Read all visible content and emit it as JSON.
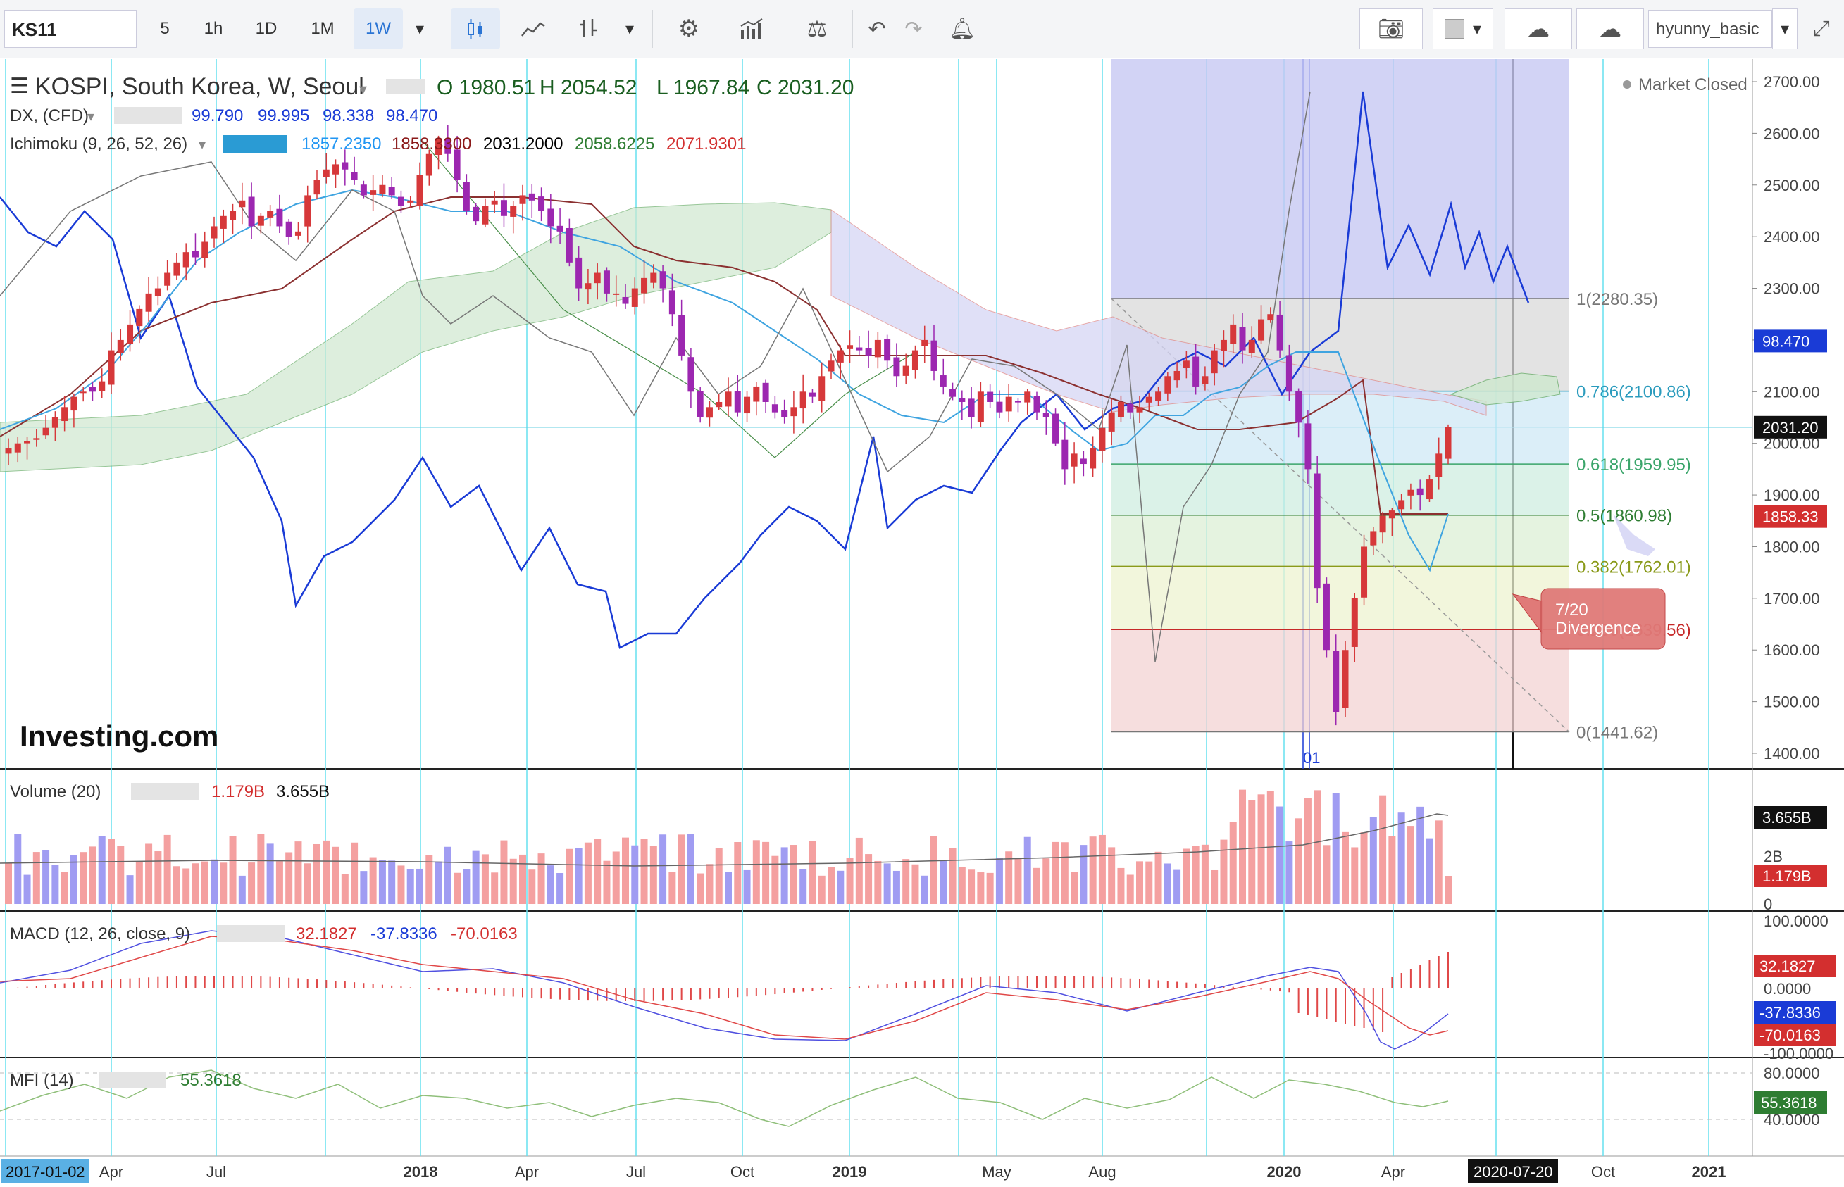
{
  "toolbar": {
    "symbol": "KS11",
    "intervals": [
      "5",
      "1h",
      "1D",
      "1M",
      "1W"
    ],
    "active_interval": "1W",
    "user": "hyunny_basic"
  },
  "main_legend": {
    "title": "KOSPI, South Korea, W, Seoul",
    "open": "O 1980.51",
    "high": "H 2054.52",
    "low": "L 1967.84",
    "close": "C 2031.20"
  },
  "dx_legend": {
    "name": "DX, (CFD)",
    "values": [
      "99.790",
      "99.995",
      "98.338",
      "98.470"
    ]
  },
  "ichimoku_legend": {
    "name": "Ichimoku (9, 26, 52, 26)",
    "values": [
      "1857.2350",
      "1858.3300",
      "2031.2000",
      "2058.6225",
      "2071.9301"
    ],
    "colors": [
      "#2196f3",
      "#8b1a1a",
      "#000000",
      "#2e7d32",
      "#d32f2f"
    ]
  },
  "market_status": "Market Closed",
  "watermark": "Investing.com",
  "fib_levels": [
    {
      "label": "1(2280.35)",
      "value": 2280.35,
      "color": "#777777"
    },
    {
      "label": "0.786(2100.86)",
      "value": 2100.86,
      "color": "#2a9bbd"
    },
    {
      "label": "0.618(1959.95)",
      "value": 1959.95,
      "color": "#3aa56a"
    },
    {
      "label": "0.5(1860.98)",
      "value": 1860.98,
      "color": "#2e7d32"
    },
    {
      "label": "0.382(1762.01)",
      "value": 1762.01,
      "color": "#8a9a1a"
    },
    {
      "label": "0.236(1639.56)",
      "value": 1639.56,
      "color": "#c62828"
    },
    {
      "label": "0(1441.62)",
      "value": 1441.62,
      "color": "#777777"
    }
  ],
  "price_axis": [
    "2700.00",
    "2600.00",
    "2500.00",
    "2400.00",
    "2300.00",
    "2200.00",
    "2100.00",
    "2000.00",
    "1900.00",
    "1800.00",
    "1700.00",
    "1600.00",
    "1500.00",
    "1400.00"
  ],
  "price_tags": [
    {
      "value": "98.470",
      "bg": "#1a3bd6"
    },
    {
      "value": "2031.20",
      "bg": "#111111"
    },
    {
      "value": "1858.33",
      "bg": "#d32f2f"
    }
  ],
  "callout": {
    "line1": "7/20",
    "line2": "Divergence"
  },
  "event_marker": "01",
  "volume_pane": {
    "label": "Volume (20)",
    "values": [
      "1.179B",
      "3.655B"
    ],
    "axis": [
      "2B",
      "0"
    ],
    "tags": [
      {
        "value": "3.655B",
        "bg": "#111111"
      },
      {
        "value": "1.179B",
        "bg": "#d32f2f"
      }
    ]
  },
  "macd_pane": {
    "label": "MACD (12, 26, close, 9)",
    "values": [
      "32.1827",
      "-37.8336",
      "-70.0163"
    ],
    "axis": [
      "100.0000",
      "0.0000",
      "-100.0000"
    ],
    "tags": [
      {
        "value": "32.1827",
        "bg": "#d32f2f"
      },
      {
        "value": "-37.8336",
        "bg": "#1a3bd6"
      },
      {
        "value": "-70.0163",
        "bg": "#d32f2f"
      }
    ]
  },
  "mfi_pane": {
    "label": "MFI (14)",
    "value": "55.3618",
    "axis": [
      "80.0000",
      "40.0000"
    ],
    "tag": {
      "value": "55.3618",
      "bg": "#2e7d32"
    }
  },
  "time_axis": {
    "start_label": "2017-01-02",
    "labels": [
      "Apr",
      "Jul",
      "2018",
      "Apr",
      "Jul",
      "Oct",
      "2019",
      "May",
      "Aug",
      "2020",
      "Apr",
      "Oct",
      "2021"
    ],
    "cursor_label": "2020-07-20"
  }
}
